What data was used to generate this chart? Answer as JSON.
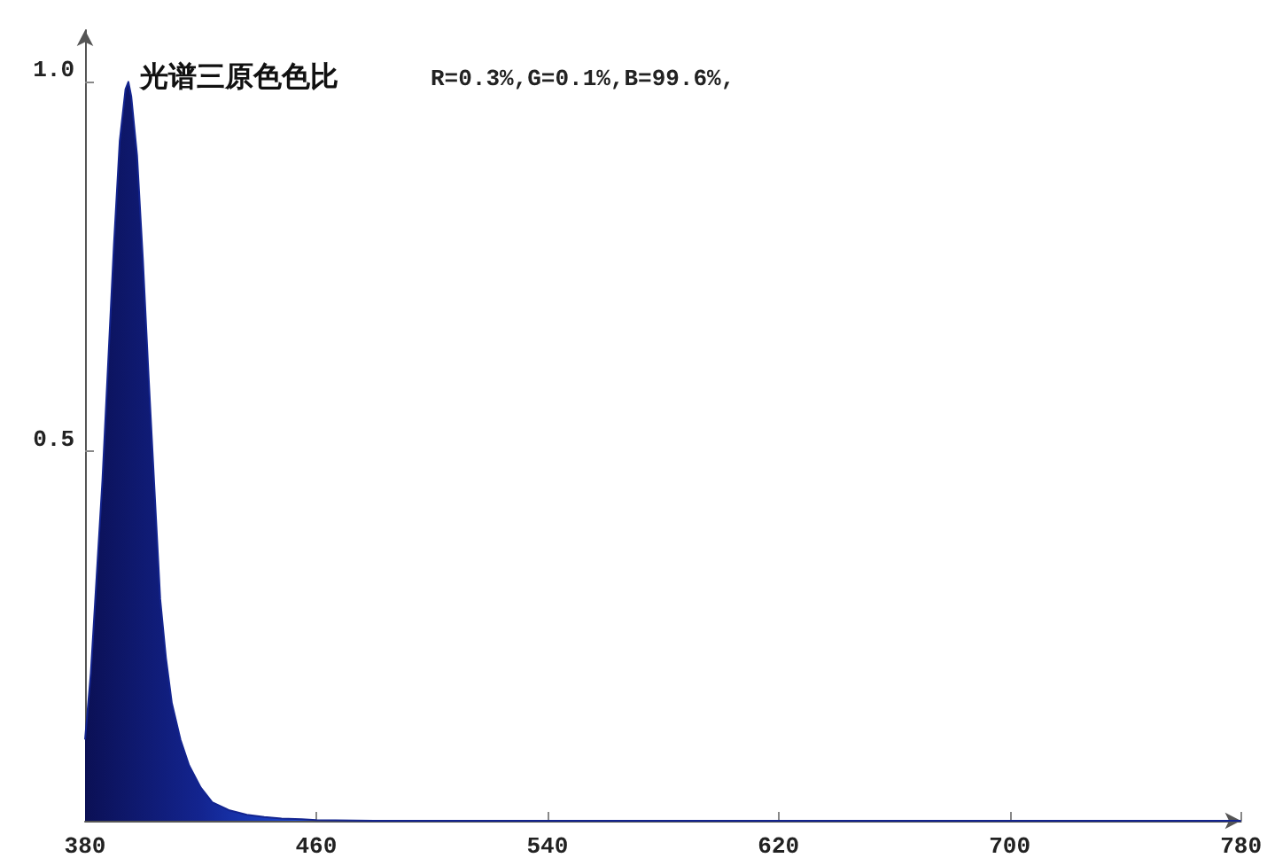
{
  "chart_data": {
    "type": "area",
    "title": "光谱三原色色比",
    "subtitle": "R=0.3%,G=0.1%,B=99.6%,",
    "x": [
      380,
      382,
      384,
      386,
      388,
      390,
      392,
      394,
      395,
      396,
      398,
      400,
      402,
      404,
      406,
      408,
      410,
      413,
      416,
      420,
      424,
      430,
      436,
      442,
      448,
      455,
      460,
      480,
      520,
      600,
      700,
      780
    ],
    "series": [
      {
        "color": "#13248f",
        "values": [
          0.11,
          0.2,
          0.33,
          0.46,
          0.62,
          0.78,
          0.92,
          0.99,
          1.0,
          0.98,
          0.9,
          0.76,
          0.6,
          0.45,
          0.3,
          0.22,
          0.16,
          0.11,
          0.075,
          0.045,
          0.025,
          0.014,
          0.008,
          0.005,
          0.003,
          0.002,
          0.001,
          0,
          0,
          0,
          0,
          0
        ]
      }
    ],
    "xlim": [
      380,
      780
    ],
    "xticks": [
      380,
      460,
      540,
      620,
      700,
      780
    ],
    "ylim": [
      0,
      1.07
    ],
    "yticks": [
      {
        "value": 0.5,
        "label": "0.5"
      },
      {
        "value": 1,
        "label": "1.0"
      }
    ],
    "grid": false,
    "marker": "none"
  }
}
